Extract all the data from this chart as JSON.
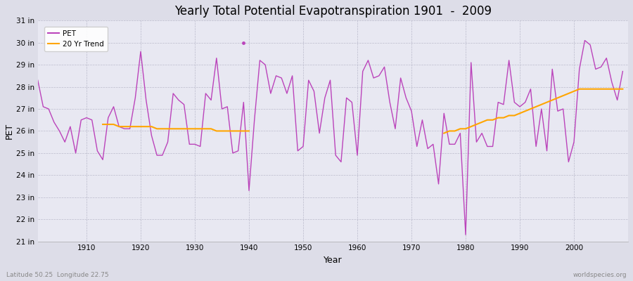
{
  "title": "Yearly Total Potential Evapotranspiration 1901  -  2009",
  "xlabel": "Year",
  "ylabel": "PET",
  "subtitle_left": "Latitude 50.25  Longitude 22.75",
  "subtitle_right": "worldspecies.org",
  "ylim": [
    21,
    31
  ],
  "ytick_labels": [
    "21 in",
    "22 in",
    "23 in",
    "24 in",
    "25 in",
    "26 in",
    "27 in",
    "28 in",
    "29 in",
    "30 in",
    "31 in"
  ],
  "ytick_values": [
    21,
    22,
    23,
    24,
    25,
    26,
    27,
    28,
    29,
    30,
    31
  ],
  "xtick_values": [
    1910,
    1920,
    1930,
    1940,
    1950,
    1960,
    1970,
    1980,
    1990,
    2000
  ],
  "pet_line_color": "#BB44BB",
  "trend_line_color": "#FFA500",
  "fig_bg_color": "#DDDDE8",
  "plot_bg_color": "#E8E8F2",
  "years": [
    1901,
    1902,
    1903,
    1904,
    1905,
    1906,
    1907,
    1908,
    1909,
    1910,
    1911,
    1912,
    1913,
    1914,
    1915,
    1916,
    1917,
    1918,
    1919,
    1920,
    1921,
    1922,
    1923,
    1924,
    1925,
    1926,
    1927,
    1928,
    1929,
    1930,
    1931,
    1932,
    1933,
    1934,
    1935,
    1936,
    1937,
    1938,
    1939,
    1940,
    1941,
    1942,
    1943,
    1944,
    1945,
    1946,
    1947,
    1948,
    1949,
    1950,
    1951,
    1952,
    1953,
    1954,
    1955,
    1956,
    1957,
    1958,
    1959,
    1960,
    1961,
    1962,
    1963,
    1964,
    1965,
    1966,
    1967,
    1968,
    1969,
    1970,
    1971,
    1972,
    1973,
    1974,
    1975,
    1976,
    1977,
    1978,
    1979,
    1980,
    1981,
    1982,
    1983,
    1984,
    1985,
    1986,
    1987,
    1988,
    1989,
    1990,
    1991,
    1992,
    1993,
    1994,
    1995,
    1996,
    1997,
    1998,
    1999,
    2000,
    2001,
    2002,
    2003,
    2004,
    2005,
    2006,
    2007,
    2008,
    2009
  ],
  "pet_values": [
    28.3,
    27.1,
    27.0,
    26.4,
    26.0,
    25.5,
    26.2,
    25.0,
    26.5,
    26.6,
    26.5,
    25.1,
    24.7,
    26.6,
    27.1,
    26.2,
    26.1,
    26.1,
    27.5,
    29.6,
    27.4,
    25.8,
    24.9,
    24.9,
    25.5,
    27.7,
    27.4,
    27.2,
    25.4,
    25.4,
    25.3,
    27.7,
    27.4,
    29.3,
    27.0,
    27.1,
    25.0,
    25.1,
    27.3,
    23.3,
    26.5,
    29.2,
    29.0,
    27.7,
    28.5,
    28.4,
    27.7,
    28.5,
    25.1,
    25.3,
    28.3,
    27.8,
    25.9,
    27.5,
    28.3,
    24.9,
    24.6,
    27.5,
    27.3,
    24.9,
    28.7,
    29.2,
    28.4,
    28.5,
    28.9,
    27.3,
    26.1,
    28.4,
    27.5,
    26.9,
    25.3,
    26.5,
    25.2,
    25.4,
    23.6,
    26.8,
    25.4,
    25.4,
    25.9,
    21.3,
    29.1,
    25.5,
    25.9,
    25.3,
    25.3,
    27.3,
    27.2,
    29.2,
    27.3,
    27.1,
    27.3,
    27.9,
    25.3,
    27.0,
    25.1,
    28.8,
    26.9,
    27.0,
    24.6,
    25.5,
    28.8,
    30.1,
    29.9,
    28.8,
    28.9,
    29.3,
    28.2,
    27.4,
    28.7
  ],
  "trend_years": [
    1913,
    1914,
    1915,
    1916,
    1917,
    1918,
    1919,
    1920,
    1921,
    1922,
    1923,
    1924,
    1925,
    1926,
    1927,
    1928,
    1929,
    1930,
    1931,
    1932,
    1933,
    1934,
    1935,
    1936,
    1937,
    1938,
    1939,
    1940,
    1976,
    1977,
    1978,
    1979,
    1980,
    1981,
    1982,
    1983,
    1984,
    1985,
    1986,
    1987,
    1988,
    1989,
    1990,
    1991,
    1992,
    1993,
    1994,
    1995,
    1996,
    1997,
    1998,
    1999,
    2000,
    2001,
    2002,
    2003,
    2004,
    2005,
    2006,
    2007,
    2008,
    2009
  ],
  "trend_values": [
    26.3,
    26.3,
    26.3,
    26.2,
    26.2,
    26.2,
    26.2,
    26.2,
    26.2,
    26.2,
    26.1,
    26.1,
    26.1,
    26.1,
    26.1,
    26.1,
    26.1,
    26.1,
    26.1,
    26.1,
    26.1,
    26.0,
    26.0,
    26.0,
    26.0,
    26.0,
    26.0,
    26.0,
    25.9,
    26.0,
    26.0,
    26.1,
    26.1,
    26.2,
    26.3,
    26.4,
    26.5,
    26.5,
    26.6,
    26.6,
    26.7,
    26.7,
    26.8,
    26.9,
    27.0,
    27.1,
    27.2,
    27.3,
    27.4,
    27.5,
    27.6,
    27.7,
    27.8,
    27.9,
    27.9,
    27.9,
    27.9,
    27.9,
    27.9,
    27.9,
    27.9,
    27.9
  ],
  "single_point_year": 1939,
  "single_point_value": 30.0,
  "legend_pet_color": "#BB44BB",
  "legend_trend_color": "#FFA500"
}
